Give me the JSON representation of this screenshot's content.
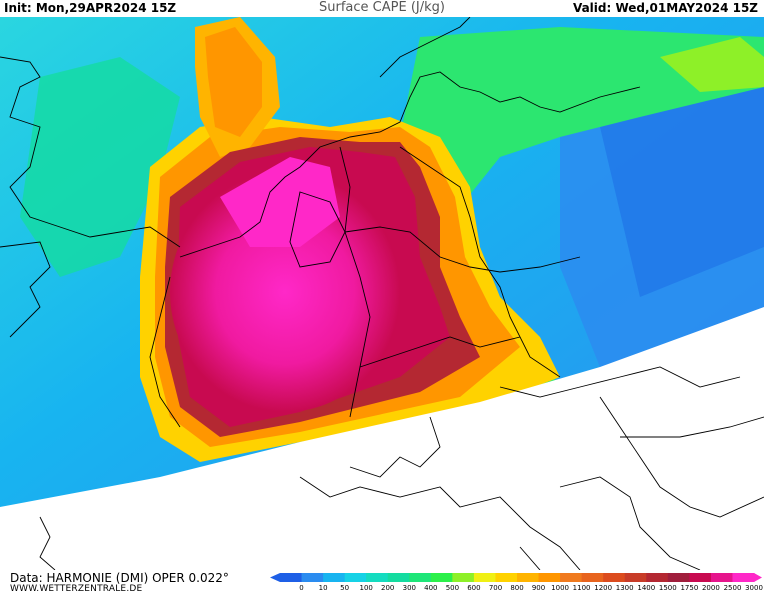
{
  "header": {
    "init": "Init: Mon,29APR2024 15Z",
    "title": "Surface CAPE (J/kg)",
    "valid": "Valid: Wed,01MAY2024 15Z"
  },
  "footer": {
    "data_source": "Data: HARMONIE (DMI) OPER 0.022°",
    "website": "WWW.WETTERZENTRALE.DE"
  },
  "legend": {
    "unit": "J/kg",
    "levels": [
      "0",
      "10",
      "50",
      "100",
      "200",
      "300",
      "400",
      "500",
      "600",
      "700",
      "800",
      "900",
      "1000",
      "1100",
      "1200",
      "1300",
      "1400",
      "1500",
      "1750",
      "2000",
      "2500",
      "3000"
    ],
    "colors": [
      "#1e5fe6",
      "#2b8cf0",
      "#18b4f0",
      "#16d2e6",
      "#14dcc0",
      "#14dca0",
      "#1ee678",
      "#2cf04a",
      "#8ef028",
      "#f0f014",
      "#ffd200",
      "#ffb400",
      "#ff9600",
      "#f07a1e",
      "#e8641e",
      "#dc4c1e",
      "#c83c28",
      "#b42832",
      "#a01e3c",
      "#c80a50",
      "#e6148c",
      "#ff28c8"
    ]
  },
  "map": {
    "no_data_color": "#ffffff",
    "border_color": "#000000"
  }
}
